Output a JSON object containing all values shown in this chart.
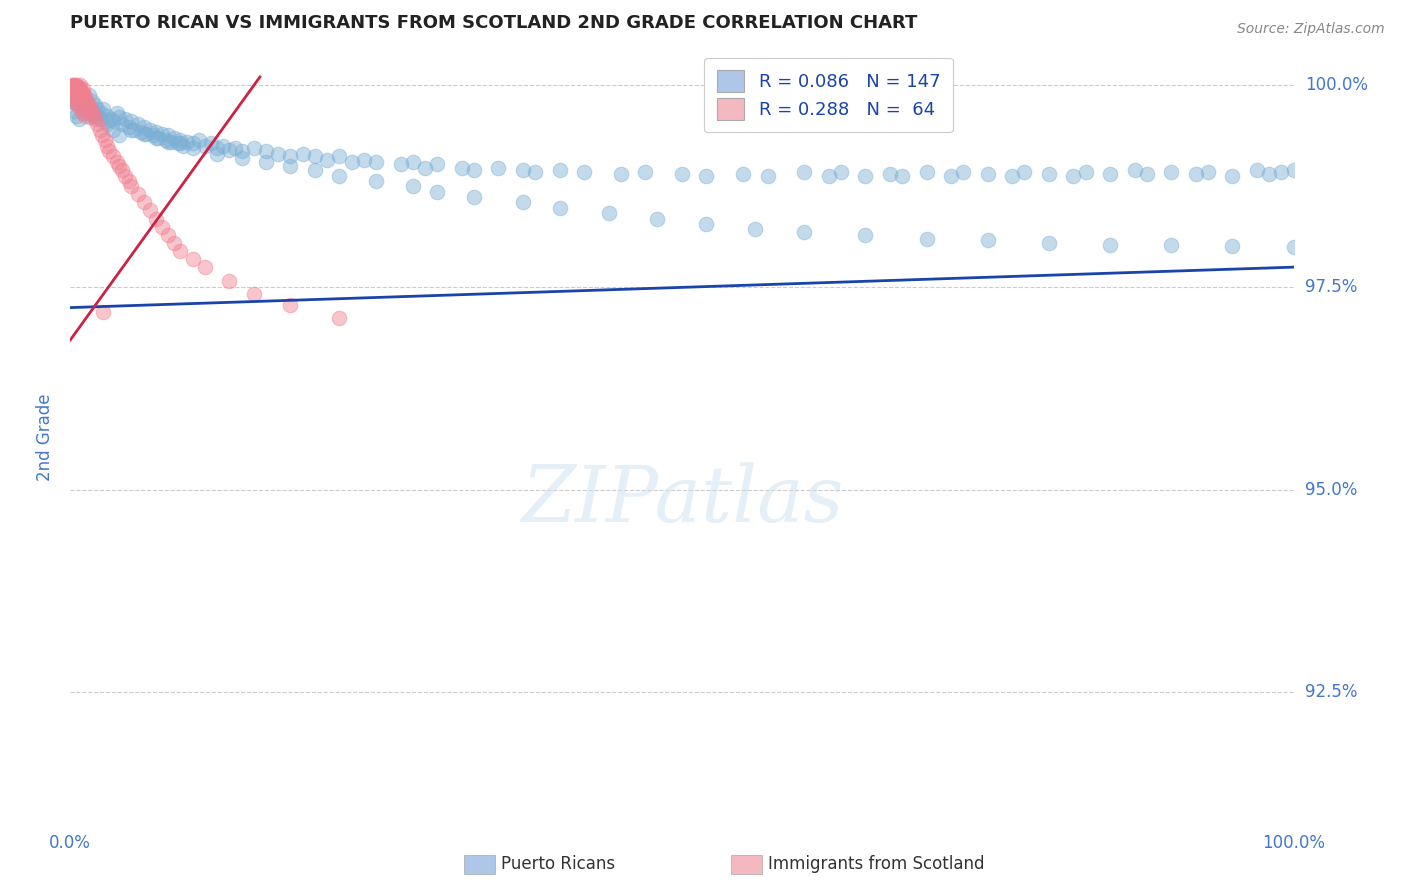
{
  "title": "PUERTO RICAN VS IMMIGRANTS FROM SCOTLAND 2ND GRADE CORRELATION CHART",
  "source_text": "Source: ZipAtlas.com",
  "ylabel": "2nd Grade",
  "xmin": 0.0,
  "xmax": 1.0,
  "ymin": 0.908,
  "ymax": 1.005,
  "yticks": [
    0.925,
    0.95,
    0.975,
    1.0
  ],
  "ytick_labels": [
    "92.5%",
    "95.0%",
    "97.5%",
    "100.0%"
  ],
  "xticks": [
    0.0,
    1.0
  ],
  "xtick_labels": [
    "0.0%",
    "100.0%"
  ],
  "legend_label_blue": "R = 0.086   N = 147",
  "legend_label_pink": "R = 0.288   N =  64",
  "legend_color_blue": "#aec6e8",
  "legend_color_pink": "#f4b8c1",
  "blue_color": "#7bafd4",
  "pink_color": "#f08090",
  "trend_blue_color": "#1a44aa",
  "trend_pink_color": "#cc2244",
  "blue_trend_x": [
    0.0,
    1.0
  ],
  "blue_trend_y": [
    0.9725,
    0.9775
  ],
  "pink_trend_x": [
    0.0,
    0.155
  ],
  "pink_trend_y": [
    0.9685,
    1.001
  ],
  "watermark": "ZIPatlas",
  "background_color": "#ffffff",
  "grid_color": "#cccccc",
  "title_color": "#222222",
  "axis_label_color": "#4477cc",
  "tick_color": "#4477cc",
  "blue_scatter_x": [
    0.002,
    0.003,
    0.004,
    0.006,
    0.008,
    0.01,
    0.012,
    0.015,
    0.018,
    0.02,
    0.022,
    0.025,
    0.027,
    0.03,
    0.033,
    0.035,
    0.038,
    0.04,
    0.042,
    0.045,
    0.048,
    0.05,
    0.052,
    0.055,
    0.058,
    0.06,
    0.062,
    0.065,
    0.068,
    0.07,
    0.072,
    0.075,
    0.078,
    0.08,
    0.082,
    0.085,
    0.088,
    0.09,
    0.092,
    0.095,
    0.1,
    0.105,
    0.11,
    0.115,
    0.12,
    0.125,
    0.13,
    0.135,
    0.14,
    0.15,
    0.16,
    0.17,
    0.18,
    0.19,
    0.2,
    0.21,
    0.22,
    0.23,
    0.24,
    0.25,
    0.27,
    0.28,
    0.29,
    0.3,
    0.32,
    0.33,
    0.35,
    0.37,
    0.38,
    0.4,
    0.42,
    0.45,
    0.47,
    0.5,
    0.52,
    0.55,
    0.57,
    0.6,
    0.62,
    0.63,
    0.65,
    0.67,
    0.68,
    0.7,
    0.72,
    0.73,
    0.75,
    0.77,
    0.78,
    0.8,
    0.82,
    0.83,
    0.85,
    0.87,
    0.88,
    0.9,
    0.92,
    0.93,
    0.95,
    0.97,
    0.98,
    0.99,
    1.0,
    0.003,
    0.005,
    0.007,
    0.01,
    0.013,
    0.016,
    0.02,
    0.025,
    0.03,
    0.035,
    0.04,
    0.05,
    0.06,
    0.07,
    0.08,
    0.09,
    0.1,
    0.12,
    0.14,
    0.16,
    0.18,
    0.2,
    0.22,
    0.25,
    0.28,
    0.3,
    0.33,
    0.37,
    0.4,
    0.44,
    0.48,
    0.52,
    0.56,
    0.6,
    0.65,
    0.7,
    0.75,
    0.8,
    0.85,
    0.9,
    0.95,
    1.0,
    0.005,
    0.01,
    0.015,
    0.02,
    0.025,
    0.03
  ],
  "blue_scatter_y": [
    0.999,
    0.9985,
    0.9978,
    0.9995,
    0.999,
    0.998,
    0.9975,
    0.9988,
    0.998,
    0.9975,
    0.997,
    0.9965,
    0.997,
    0.9962,
    0.9958,
    0.9955,
    0.9965,
    0.996,
    0.9952,
    0.9958,
    0.9948,
    0.9955,
    0.9945,
    0.9952,
    0.9942,
    0.9948,
    0.994,
    0.9945,
    0.9938,
    0.9942,
    0.9935,
    0.994,
    0.9932,
    0.9938,
    0.993,
    0.9935,
    0.9928,
    0.9932,
    0.9925,
    0.993,
    0.9928,
    0.9932,
    0.9925,
    0.9928,
    0.9922,
    0.9925,
    0.992,
    0.9922,
    0.9918,
    0.9922,
    0.9918,
    0.9915,
    0.9912,
    0.9915,
    0.9912,
    0.9908,
    0.9912,
    0.9905,
    0.9908,
    0.9905,
    0.9902,
    0.9905,
    0.9898,
    0.9902,
    0.9898,
    0.9895,
    0.9898,
    0.9895,
    0.9892,
    0.9895,
    0.9892,
    0.989,
    0.9892,
    0.989,
    0.9888,
    0.989,
    0.9888,
    0.9892,
    0.9888,
    0.9892,
    0.9888,
    0.989,
    0.9888,
    0.9892,
    0.9888,
    0.9892,
    0.989,
    0.9888,
    0.9892,
    0.989,
    0.9888,
    0.9892,
    0.989,
    0.9895,
    0.989,
    0.9892,
    0.989,
    0.9892,
    0.9888,
    0.9895,
    0.989,
    0.9892,
    0.9895,
    0.9968,
    0.9962,
    0.9958,
    0.9972,
    0.9965,
    0.996,
    0.9965,
    0.9958,
    0.9952,
    0.9945,
    0.9938,
    0.9945,
    0.994,
    0.9935,
    0.993,
    0.9928,
    0.9922,
    0.9915,
    0.991,
    0.9905,
    0.99,
    0.9895,
    0.9888,
    0.9882,
    0.9875,
    0.9868,
    0.9862,
    0.9855,
    0.9848,
    0.9842,
    0.9835,
    0.9828,
    0.9822,
    0.9818,
    0.9815,
    0.981,
    0.9808,
    0.9805,
    0.9802,
    0.9802,
    0.9801,
    0.98,
    0.9978,
    0.9972,
    0.9968,
    0.9962,
    0.9958,
    0.9955
  ],
  "pink_scatter_x": [
    0.001,
    0.002,
    0.003,
    0.003,
    0.004,
    0.004,
    0.005,
    0.005,
    0.006,
    0.006,
    0.007,
    0.007,
    0.008,
    0.008,
    0.009,
    0.009,
    0.01,
    0.01,
    0.011,
    0.012,
    0.013,
    0.014,
    0.015,
    0.016,
    0.017,
    0.018,
    0.019,
    0.02,
    0.022,
    0.024,
    0.026,
    0.028,
    0.03,
    0.032,
    0.035,
    0.038,
    0.04,
    0.042,
    0.045,
    0.048,
    0.05,
    0.055,
    0.06,
    0.065,
    0.07,
    0.075,
    0.08,
    0.085,
    0.09,
    0.1,
    0.11,
    0.13,
    0.15,
    0.18,
    0.22,
    0.027,
    0.002,
    0.003,
    0.004,
    0.005,
    0.006,
    0.008,
    0.01,
    0.012
  ],
  "pink_scatter_y": [
    1.0,
    1.0,
    1.0,
    0.9998,
    1.0,
    0.9995,
    1.0,
    0.9992,
    0.9998,
    0.9995,
    0.9998,
    0.9992,
    1.0,
    0.9995,
    0.9992,
    0.9988,
    0.9995,
    0.999,
    0.9988,
    0.9985,
    0.9982,
    0.9978,
    0.9975,
    0.9972,
    0.9968,
    0.9965,
    0.9962,
    0.9958,
    0.9952,
    0.9945,
    0.9938,
    0.9932,
    0.9925,
    0.9918,
    0.9912,
    0.9905,
    0.99,
    0.9895,
    0.9888,
    0.9882,
    0.9875,
    0.9865,
    0.9855,
    0.9845,
    0.9835,
    0.9825,
    0.9815,
    0.9805,
    0.9795,
    0.9785,
    0.9775,
    0.9758,
    0.9742,
    0.9728,
    0.9712,
    0.972,
    0.9988,
    0.9985,
    0.9982,
    0.9978,
    0.9975,
    0.997,
    0.9965,
    0.9962
  ]
}
